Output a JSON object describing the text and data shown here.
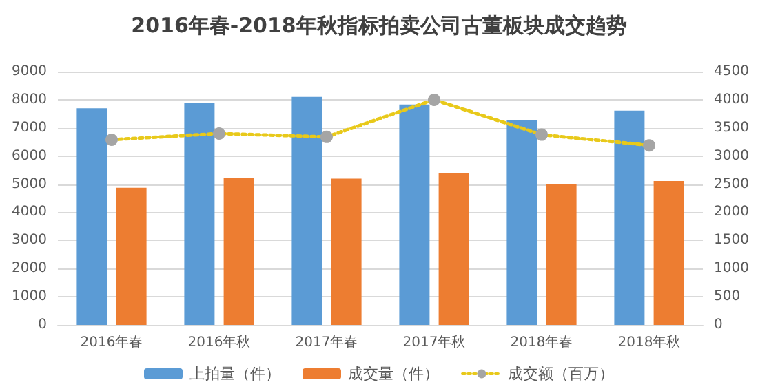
{
  "chart_data": {
    "type": "bar",
    "title": "2016年春-2018年秋指标拍卖公司古董板块成交趋势",
    "categories": [
      "2016年春",
      "2016年秋",
      "2017年春",
      "2017年秋",
      "2018年春",
      "2018年秋"
    ],
    "series": [
      {
        "name": "上拍量（件）",
        "color": "#5b9bd5",
        "values": [
          7700,
          7900,
          8100,
          7830,
          7280,
          7610
        ]
      },
      {
        "name": "成交量（件）",
        "color": "#ed7d31",
        "values": [
          4870,
          5230,
          5200,
          5400,
          4990,
          5110
        ]
      },
      {
        "name": "成交额（百万）",
        "type": "line",
        "axis": "y2",
        "color": "#e8c91a",
        "marker": "circle",
        "line_style": "dotted",
        "values": [
          3290,
          3400,
          3340,
          4000,
          3380,
          3190
        ]
      }
    ],
    "ylim": [
      0,
      9000
    ],
    "yticks": [
      0,
      1000,
      2000,
      3000,
      4000,
      5000,
      6000,
      7000,
      8000,
      9000
    ],
    "y2lim": [
      0,
      4500
    ],
    "y2ticks": [
      0,
      500,
      1000,
      1500,
      2000,
      2500,
      3000,
      3500,
      4000,
      4500
    ],
    "grid": "y",
    "legend": "bottom"
  }
}
